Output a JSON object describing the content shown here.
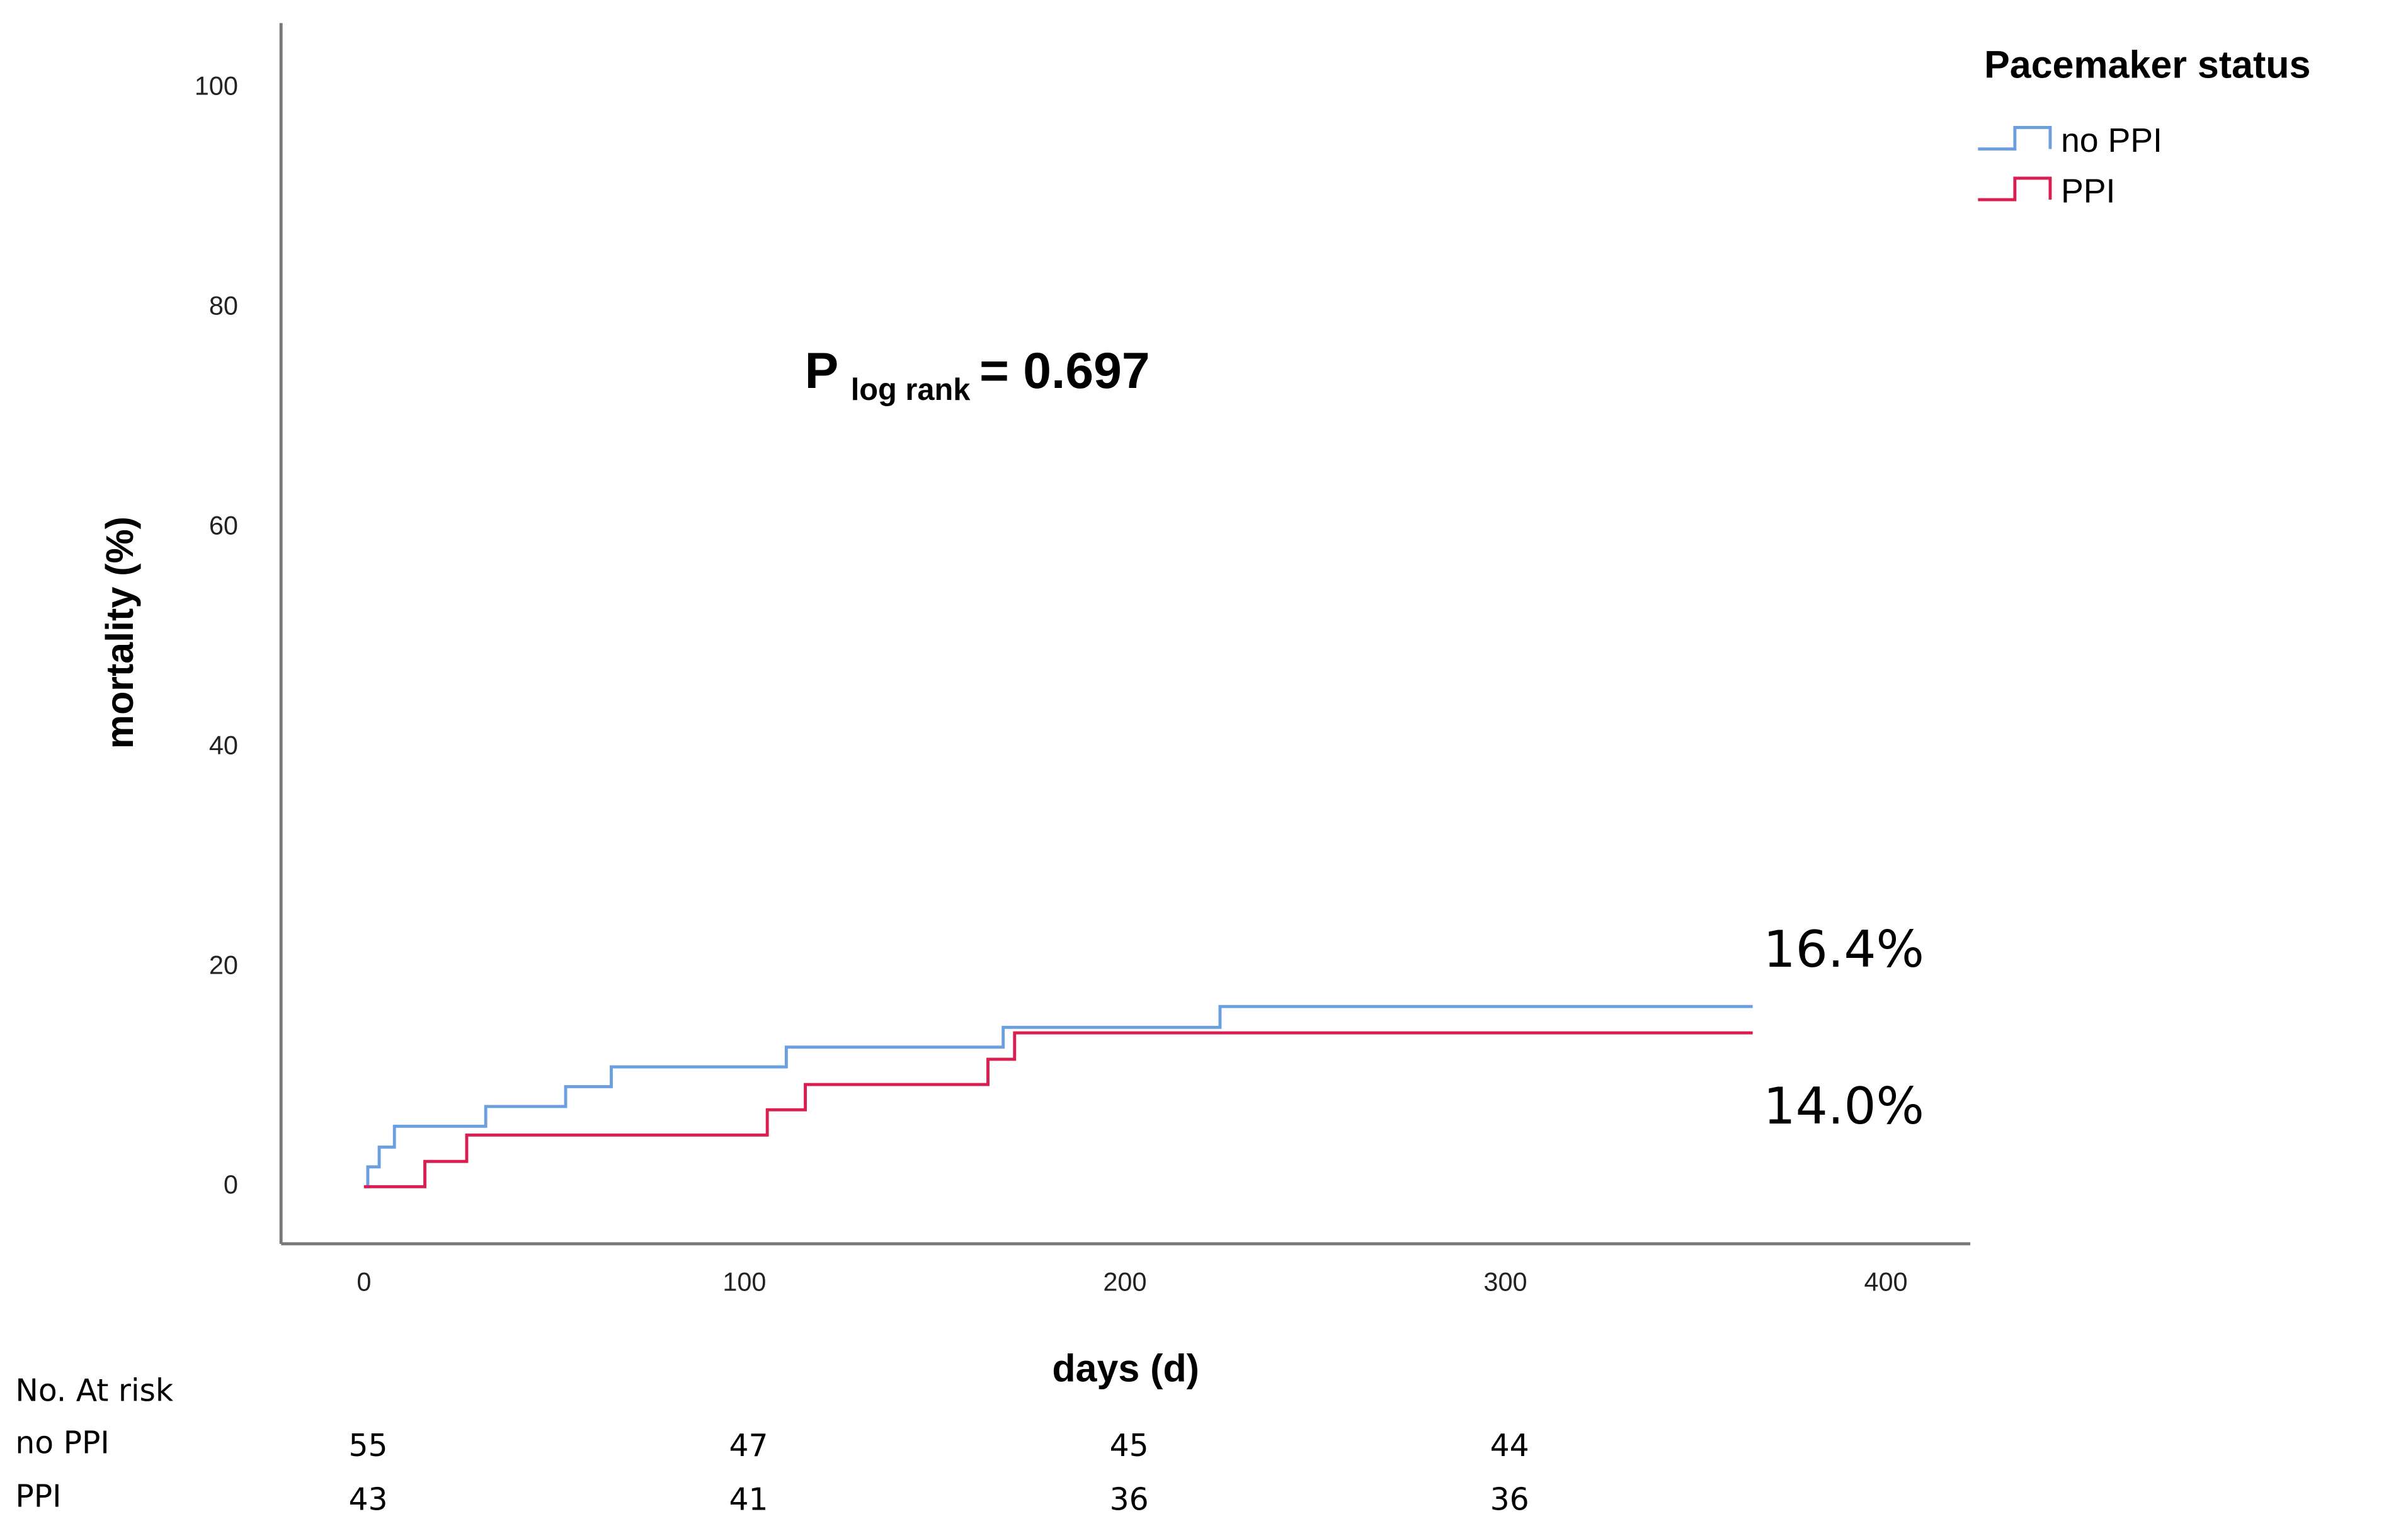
{
  "chart_data": {
    "type": "step",
    "x_label": "days (d)",
    "y_label": "mortality (%)",
    "xlim": [
      -21.8,
      422.2
    ],
    "ylim": [
      -5.2,
      105.9
    ],
    "xticks": [
      0,
      100,
      200,
      300,
      400
    ],
    "yticks": [
      0,
      20,
      40,
      60,
      80,
      100
    ],
    "grid": false,
    "legend_title": "Pacemaker status",
    "legend_position": "top-right",
    "annotation": {
      "p": "P",
      "subscript": "log rank",
      "text": "= 0.697"
    },
    "series": [
      {
        "name": "no PPI",
        "color": "#6b9fe0",
        "end_label": "16.4%",
        "x": [
          0,
          1,
          4,
          8,
          32,
          53,
          65,
          111,
          168,
          225,
          365
        ],
        "values": [
          0,
          1.8,
          3.6,
          5.5,
          7.3,
          9.1,
          10.9,
          12.7,
          14.5,
          16.4,
          16.4
        ]
      },
      {
        "name": "PPI",
        "color": "#d91f52",
        "end_label": "14.0%",
        "x": [
          0,
          16,
          27,
          106,
          116,
          164,
          171,
          365
        ],
        "values": [
          0,
          2.3,
          4.7,
          7.0,
          9.3,
          11.6,
          14.0,
          14.0
        ]
      }
    ],
    "risk_table": {
      "title": "No. At risk",
      "x": [
        0,
        100,
        200,
        300
      ],
      "rows": [
        {
          "label": "no PPI",
          "values": [
            55,
            47,
            45,
            44
          ]
        },
        {
          "label": "PPI",
          "values": [
            43,
            41,
            36,
            36
          ]
        }
      ]
    }
  }
}
